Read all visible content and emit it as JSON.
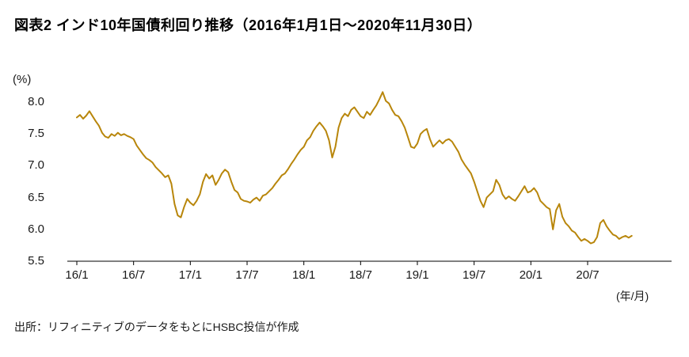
{
  "title": "図表2 インド10年国債利回り推移（2016年1月1日〜2020年11月30日）",
  "source": "出所：リフィニティブのデータをもとにHSBC投信が作成",
  "chart_data": {
    "type": "line",
    "title": "図表2 インド10年国債利回り推移（2016年1月1日〜2020年11月30日）",
    "ylabel": "(%)",
    "xlabel": "(年/月)",
    "line_color": "#B8860B",
    "grid": false,
    "legend": "none",
    "ylim": [
      5.5,
      8.3
    ],
    "y_tick_labels": [
      "5.5",
      "6.0",
      "6.5",
      "7.0",
      "7.5",
      "8.0"
    ],
    "x_tick_labels": [
      "16/1",
      "16/7",
      "17/1",
      "17/7",
      "18/1",
      "18/7",
      "19/1",
      "19/7",
      "20/1",
      "20/7"
    ],
    "x_tick_months": [
      0,
      6,
      12,
      18,
      24,
      30,
      36,
      42,
      48,
      54
    ],
    "x_range": [
      "2016-01-01",
      "2020-11-30"
    ],
    "series": [
      {
        "start": "2016-01",
        "points_per_month": 3,
        "values": [
          7.76,
          7.8,
          7.74,
          7.79,
          7.86,
          7.78,
          7.7,
          7.63,
          7.52,
          7.46,
          7.44,
          7.5,
          7.47,
          7.52,
          7.48,
          7.5,
          7.47,
          7.45,
          7.42,
          7.32,
          7.25,
          7.18,
          7.12,
          7.09,
          7.05,
          6.98,
          6.93,
          6.88,
          6.82,
          6.85,
          6.72,
          6.4,
          6.22,
          6.19,
          6.35,
          6.48,
          6.42,
          6.38,
          6.45,
          6.55,
          6.75,
          6.87,
          6.8,
          6.85,
          6.7,
          6.78,
          6.88,
          6.94,
          6.9,
          6.75,
          6.62,
          6.58,
          6.48,
          6.45,
          6.44,
          6.42,
          6.47,
          6.5,
          6.45,
          6.53,
          6.55,
          6.6,
          6.65,
          6.72,
          6.78,
          6.85,
          6.88,
          6.95,
          7.03,
          7.1,
          7.18,
          7.25,
          7.3,
          7.4,
          7.45,
          7.55,
          7.62,
          7.68,
          7.62,
          7.55,
          7.4,
          7.13,
          7.3,
          7.6,
          7.75,
          7.82,
          7.78,
          7.88,
          7.92,
          7.85,
          7.78,
          7.75,
          7.85,
          7.8,
          7.88,
          7.95,
          8.05,
          8.16,
          8.02,
          7.98,
          7.88,
          7.8,
          7.78,
          7.7,
          7.6,
          7.45,
          7.3,
          7.28,
          7.35,
          7.5,
          7.55,
          7.58,
          7.42,
          7.3,
          7.35,
          7.4,
          7.35,
          7.4,
          7.42,
          7.38,
          7.3,
          7.22,
          7.1,
          7.02,
          6.95,
          6.88,
          6.75,
          6.6,
          6.45,
          6.35,
          6.5,
          6.55,
          6.6,
          6.78,
          6.7,
          6.55,
          6.48,
          6.52,
          6.48,
          6.45,
          6.52,
          6.6,
          6.68,
          6.58,
          6.6,
          6.65,
          6.58,
          6.45,
          6.4,
          6.35,
          6.32,
          6.0,
          6.3,
          6.4,
          6.2,
          6.1,
          6.05,
          5.98,
          5.95,
          5.88,
          5.82,
          5.85,
          5.82,
          5.78,
          5.8,
          5.88,
          6.1,
          6.15,
          6.05,
          5.98,
          5.92,
          5.9,
          5.85,
          5.88,
          5.9,
          5.87,
          5.9
        ]
      }
    ]
  }
}
